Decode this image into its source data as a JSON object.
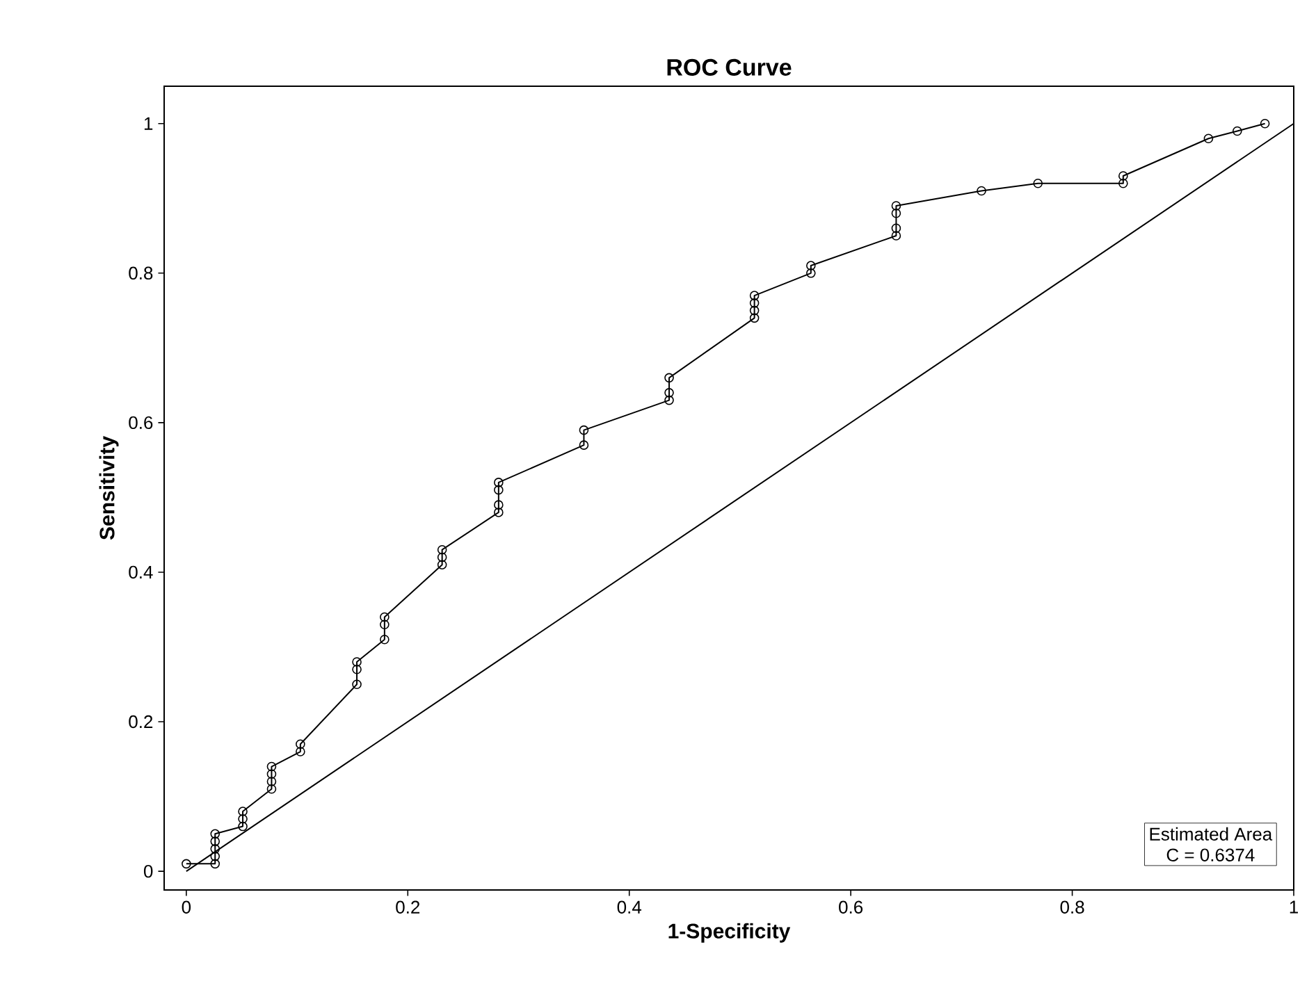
{
  "chart_data": {
    "type": "line",
    "title": "ROC Curve",
    "xlabel": "1-Specificity",
    "ylabel": "Sensitivity",
    "xlim": [
      -0.02,
      1.0
    ],
    "ylim": [
      -0.025,
      1.05
    ],
    "xticks": [
      0,
      0.2,
      0.4,
      0.6,
      0.8,
      1
    ],
    "yticks": [
      0,
      0.2,
      0.4,
      0.6,
      0.8,
      1
    ],
    "grid": false,
    "series": [
      {
        "marker": "circle",
        "color": "#000000",
        "x": [
          0,
          0.026,
          0.026,
          0.026,
          0.026,
          0.026,
          0.051,
          0.051,
          0.051,
          0.077,
          0.077,
          0.077,
          0.077,
          0.103,
          0.103,
          0.154,
          0.154,
          0.154,
          0.179,
          0.179,
          0.179,
          0.231,
          0.231,
          0.231,
          0.282,
          0.282,
          0.282,
          0.282,
          0.359,
          0.359,
          0.436,
          0.436,
          0.436,
          0.513,
          0.513,
          0.513,
          0.513,
          0.564,
          0.564,
          0.641,
          0.641,
          0.641,
          0.641,
          0.718,
          0.769,
          0.846,
          0.846,
          0.923,
          0.949,
          0.974
        ],
        "values": [
          0.01,
          0.01,
          0.02,
          0.03,
          0.04,
          0.05,
          0.06,
          0.07,
          0.08,
          0.11,
          0.12,
          0.13,
          0.14,
          0.16,
          0.17,
          0.25,
          0.27,
          0.28,
          0.31,
          0.33,
          0.34,
          0.41,
          0.42,
          0.43,
          0.48,
          0.49,
          0.51,
          0.52,
          0.57,
          0.59,
          0.63,
          0.64,
          0.66,
          0.74,
          0.75,
          0.76,
          0.77,
          0.8,
          0.81,
          0.85,
          0.86,
          0.88,
          0.89,
          0.91,
          0.92,
          0.92,
          0.93,
          0.98,
          0.99,
          1.0
        ]
      },
      {
        "marker": "none",
        "color": "#000000",
        "x": [
          0,
          1
        ],
        "values": [
          0,
          1
        ]
      }
    ],
    "annotations": [
      "Estimated Area",
      "C =  0.6374"
    ]
  }
}
